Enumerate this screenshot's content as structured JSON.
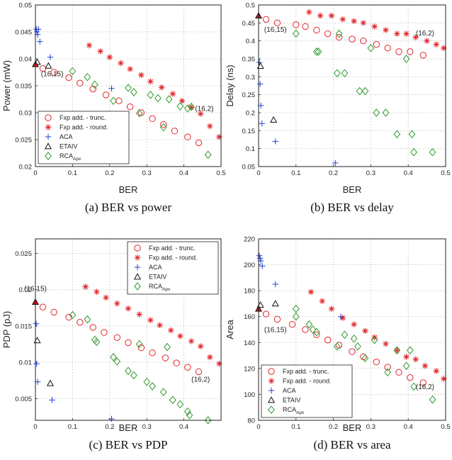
{
  "colors": {
    "fxp_trunc": "#e3262a",
    "fxp_round": "#e3262a",
    "aca": "#1f3fd6",
    "etaiv": "#111111",
    "rca": "#2e9a2e"
  },
  "legend_labels": {
    "fxp_trunc": "Fxp add. - trunc.",
    "fxp_round": "Fxp add. - round.",
    "aca": "ACA",
    "etaiv": "ETAIV",
    "rca": "RCA",
    "rca_sub": "Apx"
  },
  "chart_data": [
    {
      "type": "scatter",
      "caption": "(a) BER vs power",
      "xlabel": "BER",
      "ylabel": "Power (mW)",
      "xlim": [
        0,
        0.5
      ],
      "ylim": [
        0.02,
        0.05
      ],
      "xticks": [
        0,
        0.1,
        0.2,
        0.3,
        0.4,
        0.5
      ],
      "xtick_labels": [
        "0",
        "0.1",
        "0.2",
        "0.3",
        "0.4",
        "0.5"
      ],
      "yticks": [
        0.02,
        0.025,
        0.03,
        0.035,
        0.04,
        0.045,
        0.05
      ],
      "ytick_labels": [
        "0.02",
        "0.025",
        "0.03",
        "0.035",
        "0.04",
        "0.045",
        "0.05"
      ],
      "grid": true,
      "legend_position": "bottom-left",
      "annotations": [
        {
          "text": "(16,15)",
          "x": 0.045,
          "y": 0.0368
        },
        {
          "text": "(16,2)",
          "x": 0.455,
          "y": 0.0303
        }
      ],
      "series": [
        {
          "name": "Fxp add. - trunc.",
          "key": "fxp_trunc",
          "marker": "circle",
          "x": [
            0.02,
            0.05,
            0.09,
            0.12,
            0.155,
            0.19,
            0.225,
            0.255,
            0.285,
            0.315,
            0.345,
            0.375,
            0.41,
            0.44
          ],
          "y": [
            0.0382,
            0.0375,
            0.0365,
            0.0355,
            0.0344,
            0.0333,
            0.0322,
            0.0311,
            0.03,
            0.0289,
            0.0278,
            0.0266,
            0.0255,
            0.0244
          ]
        },
        {
          "name": "Fxp add. - round.",
          "key": "fxp_round",
          "marker": "star",
          "x": [
            0.145,
            0.175,
            0.2,
            0.23,
            0.255,
            0.285,
            0.31,
            0.34,
            0.37,
            0.395,
            0.42,
            0.445,
            0.47,
            0.495
          ],
          "y": [
            0.0425,
            0.0414,
            0.0403,
            0.0392,
            0.0381,
            0.037,
            0.0358,
            0.0347,
            0.0335,
            0.0322,
            0.031,
            0.0298,
            0.0275,
            0.0255
          ]
        },
        {
          "name": "ACA",
          "key": "aca",
          "marker": "plus",
          "x": [
            0.002,
            0.004,
            0.006,
            0.008,
            0.012,
            0.04,
            0.205
          ],
          "y": [
            0.0455,
            0.045,
            0.0445,
            0.0455,
            0.0432,
            0.0403,
            0.0345
          ]
        },
        {
          "name": "ETAIV",
          "key": "etaiv",
          "marker": "triangle",
          "x": [
            0.005,
            0.035
          ],
          "y": [
            0.0394,
            0.0387
          ]
        },
        {
          "name": "RCAApx",
          "key": "rca",
          "marker": "diamond",
          "x": [
            0.1,
            0.14,
            0.16,
            0.21,
            0.25,
            0.265,
            0.28,
            0.31,
            0.33,
            0.345,
            0.36,
            0.39,
            0.41,
            0.42,
            0.465
          ],
          "y": [
            0.0377,
            0.0366,
            0.0352,
            0.0322,
            0.0346,
            0.0338,
            0.0299,
            0.0333,
            0.0327,
            0.0273,
            0.0325,
            0.0312,
            0.0308,
            0.0311,
            0.0222
          ]
        },
        {
          "name": "",
          "key": "start_filled",
          "marker": "triangle-filled",
          "x": [
            0.0
          ],
          "y": [
            0.039
          ]
        }
      ]
    },
    {
      "type": "scatter",
      "caption": "(b) BER vs delay",
      "xlabel": "BER",
      "ylabel": "Delay (ns)",
      "xlim": [
        0,
        0.5
      ],
      "ylim": [
        0.05,
        0.5
      ],
      "xticks": [
        0,
        0.1,
        0.2,
        0.3,
        0.4,
        0.5
      ],
      "xtick_labels": [
        "0",
        "0.1",
        "0.2",
        "0.3",
        "0.4",
        "0.5"
      ],
      "yticks": [
        0.05,
        0.1,
        0.15,
        0.2,
        0.25,
        0.3,
        0.35,
        0.4,
        0.45,
        0.5
      ],
      "ytick_labels": [
        "0.05",
        "0.1",
        "0.15",
        "0.2",
        "0.25",
        "0.3",
        "0.35",
        "0.4",
        "0.45",
        "0.5"
      ],
      "grid": true,
      "legend_position": "none",
      "annotations": [
        {
          "text": "(16,15)",
          "x": 0.045,
          "y": 0.425
        },
        {
          "text": "(16,2)",
          "x": 0.445,
          "y": 0.415
        }
      ],
      "series": [
        {
          "name": "Fxp add. - trunc.",
          "key": "fxp_trunc",
          "marker": "circle",
          "x": [
            0.02,
            0.05,
            0.1,
            0.125,
            0.155,
            0.185,
            0.215,
            0.25,
            0.28,
            0.315,
            0.345,
            0.375,
            0.405,
            0.44
          ],
          "y": [
            0.46,
            0.45,
            0.445,
            0.44,
            0.43,
            0.42,
            0.41,
            0.405,
            0.4,
            0.39,
            0.38,
            0.37,
            0.37,
            0.36
          ]
        },
        {
          "name": "Fxp add. - round.",
          "key": "fxp_round",
          "marker": "star",
          "x": [
            0.135,
            0.165,
            0.195,
            0.225,
            0.255,
            0.28,
            0.31,
            0.34,
            0.37,
            0.395,
            0.42,
            0.45,
            0.475,
            0.495
          ],
          "y": [
            0.48,
            0.47,
            0.47,
            0.46,
            0.455,
            0.45,
            0.44,
            0.43,
            0.42,
            0.42,
            0.41,
            0.4,
            0.39,
            0.38
          ]
        },
        {
          "name": "ACA",
          "key": "aca",
          "marker": "plus",
          "x": [
            0.002,
            0.004,
            0.006,
            0.009,
            0.045,
            0.205
          ],
          "y": [
            0.34,
            0.28,
            0.22,
            0.17,
            0.12,
            0.06
          ]
        },
        {
          "name": "ETAIV",
          "key": "etaiv",
          "marker": "triangle",
          "x": [
            0.005,
            0.04
          ],
          "y": [
            0.33,
            0.18
          ]
        },
        {
          "name": "RCAApx",
          "key": "rca",
          "marker": "diamond",
          "x": [
            0.1,
            0.155,
            0.16,
            0.21,
            0.215,
            0.23,
            0.27,
            0.285,
            0.3,
            0.315,
            0.34,
            0.37,
            0.395,
            0.41,
            0.415,
            0.465
          ],
          "y": [
            0.42,
            0.37,
            0.37,
            0.31,
            0.42,
            0.31,
            0.26,
            0.26,
            0.38,
            0.2,
            0.2,
            0.14,
            0.35,
            0.14,
            0.09,
            0.09
          ]
        },
        {
          "name": "",
          "key": "start_filled",
          "marker": "triangle-filled",
          "x": [
            0.0
          ],
          "y": [
            0.47
          ]
        }
      ]
    },
    {
      "type": "scatter",
      "caption": "(c) BER vs PDP",
      "xlabel": "BER",
      "ylabel": "PDP (pJ)",
      "xlim": [
        0,
        0.5
      ],
      "ylim": [
        0.002,
        0.027
      ],
      "xticks": [
        0,
        0.1,
        0.2,
        0.3,
        0.4
      ],
      "xtick_labels": [
        "0",
        "0.1",
        "0.2",
        "0.3",
        "0.4"
      ],
      "yticks": [
        0.005,
        0.01,
        0.015,
        0.02,
        0.025
      ],
      "ytick_labels": [
        "0.005",
        "0.01",
        "0.015",
        "0.02",
        "0.025"
      ],
      "grid": true,
      "legend_position": "top-right",
      "annotations": [
        {
          "text": "(16,15)",
          "x": 0.0,
          "y": 0.0198
        },
        {
          "text": "(16,2)",
          "x": 0.445,
          "y": 0.0073
        }
      ],
      "series": [
        {
          "name": "Fxp add. - trunc.",
          "key": "fxp_trunc",
          "marker": "circle",
          "x": [
            0.02,
            0.05,
            0.09,
            0.12,
            0.155,
            0.185,
            0.22,
            0.25,
            0.285,
            0.315,
            0.35,
            0.38,
            0.41,
            0.44
          ],
          "y": [
            0.0176,
            0.0169,
            0.0162,
            0.0155,
            0.0148,
            0.0141,
            0.0134,
            0.0127,
            0.012,
            0.0113,
            0.0106,
            0.0099,
            0.0093,
            0.0087
          ]
        },
        {
          "name": "Fxp add. - round.",
          "key": "fxp_round",
          "marker": "star",
          "x": [
            0.135,
            0.165,
            0.19,
            0.22,
            0.25,
            0.28,
            0.31,
            0.335,
            0.365,
            0.39,
            0.42,
            0.445,
            0.47,
            0.495
          ],
          "y": [
            0.0204,
            0.0197,
            0.0189,
            0.0181,
            0.0174,
            0.0166,
            0.0158,
            0.0151,
            0.0144,
            0.0136,
            0.0129,
            0.0122,
            0.0107,
            0.0098
          ]
        },
        {
          "name": "ACA",
          "key": "aca",
          "marker": "plus",
          "x": [
            0.002,
            0.003,
            0.006,
            0.045,
            0.205
          ],
          "y": [
            0.0153,
            0.0098,
            0.0073,
            0.0048,
            0.0022
          ]
        },
        {
          "name": "ETAIV",
          "key": "etaiv",
          "marker": "triangle",
          "x": [
            0.005,
            0.04
          ],
          "y": [
            0.013,
            0.0071
          ]
        },
        {
          "name": "RCAApx",
          "key": "rca",
          "marker": "diamond",
          "x": [
            0.1,
            0.14,
            0.16,
            0.165,
            0.21,
            0.22,
            0.25,
            0.265,
            0.28,
            0.3,
            0.315,
            0.345,
            0.355,
            0.37,
            0.39,
            0.41,
            0.415,
            0.465
          ],
          "y": [
            0.0165,
            0.0159,
            0.0131,
            0.0128,
            0.0107,
            0.0101,
            0.0088,
            0.0082,
            0.0125,
            0.0073,
            0.0067,
            0.0059,
            0.0121,
            0.0048,
            0.0042,
            0.0032,
            0.0027,
            0.002
          ]
        },
        {
          "name": "",
          "key": "start_filled",
          "marker": "triangle-filled",
          "x": [
            0.0
          ],
          "y": [
            0.0183
          ]
        }
      ]
    },
    {
      "type": "scatter",
      "caption": "(d) BER vs area",
      "xlabel": "BER",
      "ylabel": "Area",
      "xlim": [
        0,
        0.5
      ],
      "ylim": [
        80,
        220
      ],
      "xticks": [
        0,
        0.1,
        0.2,
        0.3,
        0.4,
        0.5
      ],
      "xtick_labels": [
        "0",
        "0.1",
        "0.2",
        "0.3",
        "0.4",
        "0.5"
      ],
      "yticks": [
        80,
        100,
        120,
        140,
        160,
        180,
        200,
        220
      ],
      "ytick_labels": [
        "80",
        "100",
        "120",
        "140",
        "160",
        "180",
        "200",
        "220"
      ],
      "grid": true,
      "legend_position": "bottom-left",
      "annotations": [
        {
          "text": "(16,15)",
          "x": 0.045,
          "y": 148
        },
        {
          "text": "(16,2)",
          "x": 0.445,
          "y": 104
        }
      ],
      "series": [
        {
          "name": "Fxp add. - trunc.",
          "key": "fxp_trunc",
          "marker": "circle",
          "x": [
            0.02,
            0.05,
            0.09,
            0.125,
            0.155,
            0.185,
            0.215,
            0.25,
            0.28,
            0.315,
            0.345,
            0.375,
            0.405,
            0.44
          ],
          "y": [
            162,
            158,
            154,
            150,
            146,
            142,
            138,
            133,
            129,
            125,
            121,
            117,
            113,
            109
          ]
        },
        {
          "name": "Fxp add. - round.",
          "key": "fxp_round",
          "marker": "star",
          "x": [
            0.14,
            0.17,
            0.195,
            0.225,
            0.255,
            0.285,
            0.31,
            0.34,
            0.37,
            0.395,
            0.42,
            0.445,
            0.475,
            0.495
          ],
          "y": [
            179,
            172,
            166,
            159,
            154,
            149,
            144,
            139,
            134,
            129,
            127,
            122,
            118,
            112
          ]
        },
        {
          "name": "ACA",
          "key": "aca",
          "marker": "plus",
          "x": [
            0.002,
            0.004,
            0.006,
            0.01,
            0.045,
            0.22
          ],
          "y": [
            207,
            205,
            203,
            199,
            185,
            160
          ]
        },
        {
          "name": "ETAIV",
          "key": "etaiv",
          "marker": "triangle",
          "x": [
            0.005,
            0.045
          ],
          "y": [
            169,
            170
          ]
        },
        {
          "name": "RCAApx",
          "key": "rca",
          "marker": "diamond",
          "x": [
            0.1,
            0.1,
            0.135,
            0.145,
            0.155,
            0.21,
            0.23,
            0.255,
            0.265,
            0.285,
            0.31,
            0.345,
            0.37,
            0.395,
            0.405,
            0.415,
            0.465
          ],
          "y": [
            166,
            160,
            154,
            150,
            148,
            137,
            146,
            143,
            137,
            128,
            142,
            117,
            134,
            122,
            134,
            106,
            96
          ]
        },
        {
          "name": "",
          "key": "start_filled",
          "marker": "triangle-filled",
          "x": [
            0.0
          ],
          "y": [
            166
          ]
        }
      ]
    }
  ]
}
